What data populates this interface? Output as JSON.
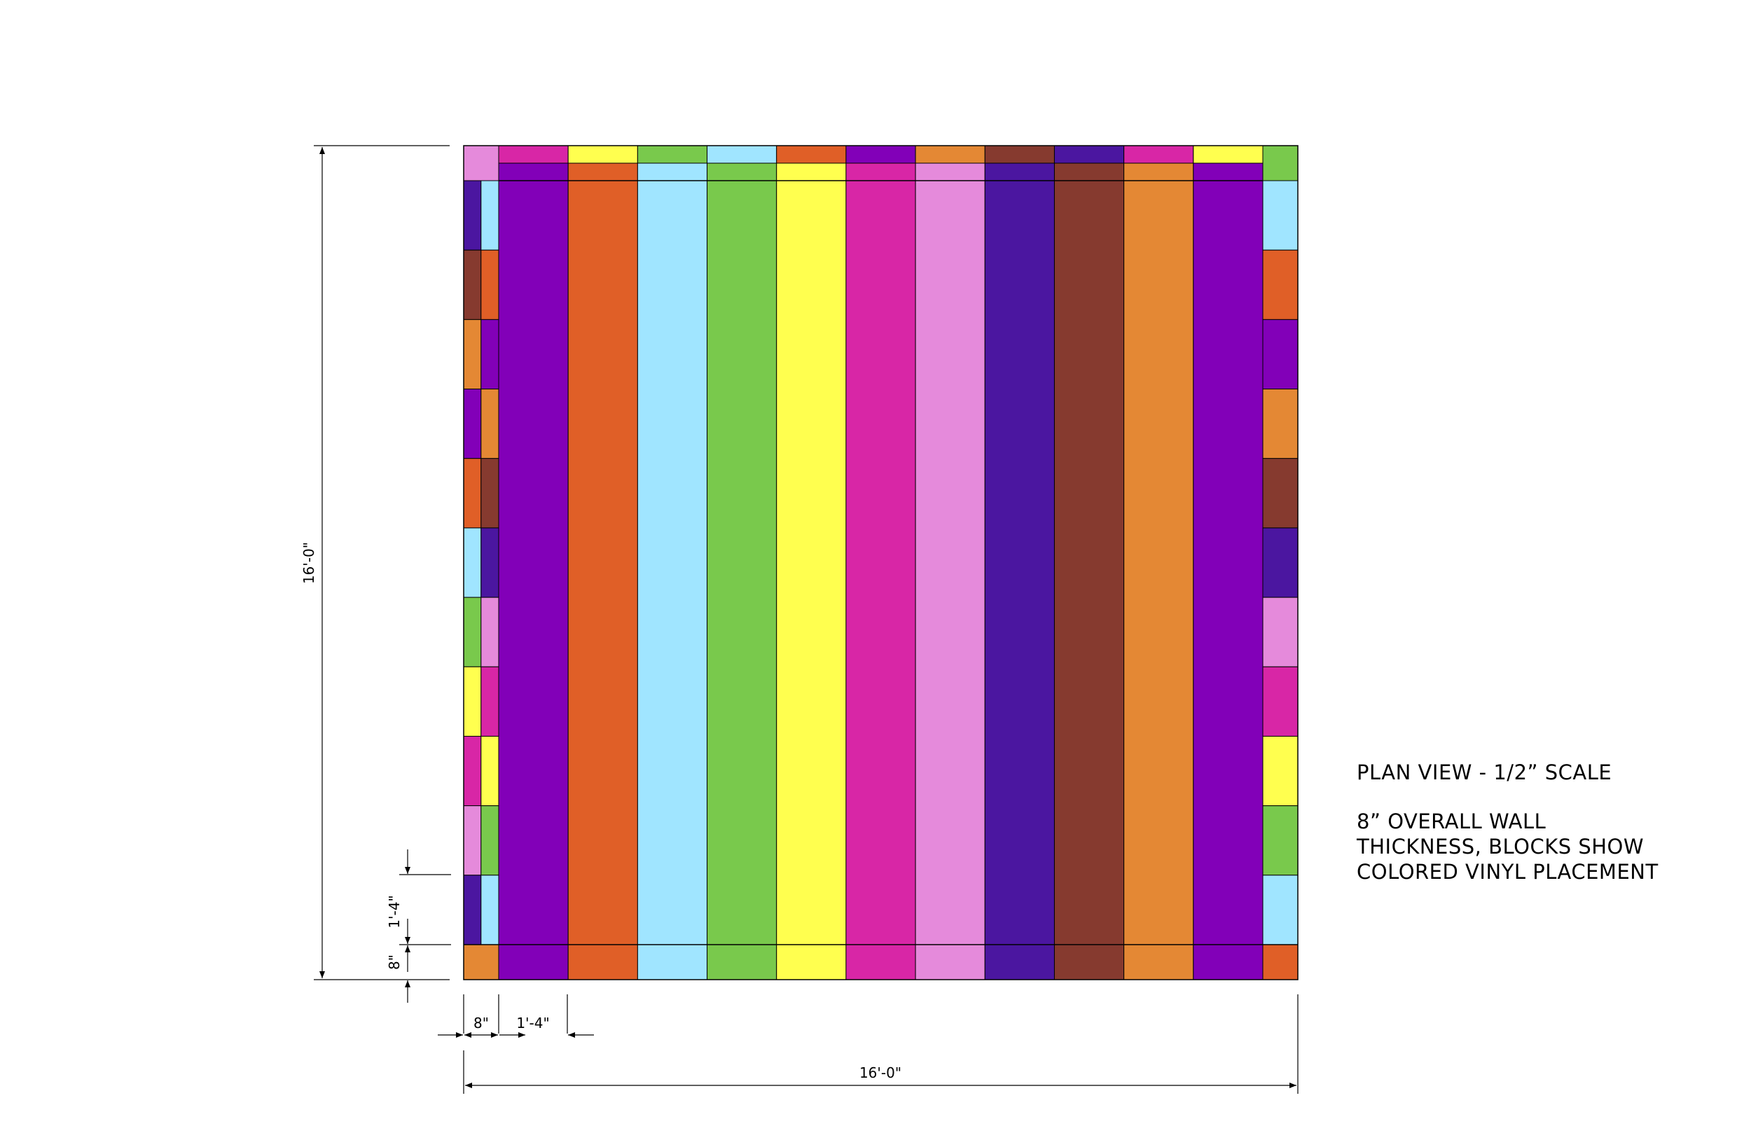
{
  "colors": {
    "violet": "#8200B8",
    "orange": "#E05F27",
    "sky": "#A0E5FF",
    "green": "#79C94C",
    "yellow": "#FFFF4F",
    "magenta": "#D826A6",
    "pink": "#E58ADB",
    "indigo": "#4B16A0",
    "brown": "#863A2F",
    "amber": "#E48834",
    "line": "#000000"
  },
  "floor": {
    "top_cap": [
      "magenta",
      "yellow",
      "green",
      "sky",
      "orange",
      "violet",
      "amber",
      "brown",
      "indigo",
      "magenta",
      "yellow"
    ],
    "stripes": [
      "violet",
      "orange",
      "sky",
      "green",
      "yellow",
      "magenta",
      "pink",
      "indigo",
      "brown",
      "amber",
      "violet"
    ]
  },
  "walls": {
    "left_outer": [
      "pink",
      "indigo",
      "brown",
      "amber",
      "violet",
      "orange",
      "sky",
      "green",
      "yellow",
      "magenta",
      "pink",
      "indigo",
      "amber"
    ],
    "left_inner": [
      "sky",
      "orange",
      "violet",
      "amber",
      "brown",
      "indigo",
      "pink",
      "magenta",
      "yellow",
      "green",
      "sky"
    ],
    "right": [
      "green",
      "sky",
      "orange",
      "violet",
      "amber",
      "brown",
      "indigo",
      "pink",
      "magenta",
      "yellow",
      "green",
      "sky",
      "orange"
    ]
  },
  "dimensions": {
    "overall_height": "16'-0\"",
    "overall_width": "16'-0\"",
    "block_height": "1'-4\"",
    "wall_thickness": "8\"",
    "wall_width": "8\"",
    "block_width": "1'-4\""
  },
  "notes": {
    "title": "PLAN VIEW - 1/2” SCALE",
    "line1": "8” OVERALL WALL",
    "line2": "THICKNESS, BLOCKS SHOW",
    "line3": "COLORED VINYL PLACEMENT"
  }
}
